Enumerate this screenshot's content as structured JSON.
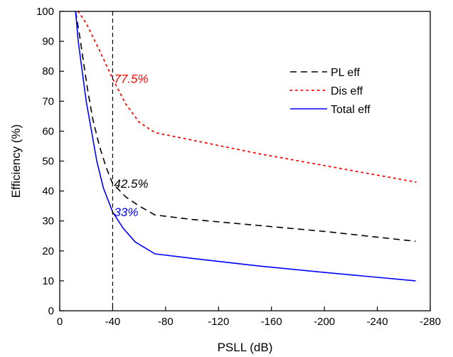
{
  "chart_data": {
    "type": "line",
    "xlabel": "PSLL (dB)",
    "ylabel": "Efficiency (%)",
    "xlim": [
      0,
      -280
    ],
    "ylim": [
      0,
      100
    ],
    "xticks": [
      0,
      -40,
      -80,
      -120,
      -160,
      -200,
      -240,
      -280
    ],
    "yticks": [
      0,
      10,
      20,
      30,
      40,
      50,
      60,
      70,
      80,
      90,
      100
    ],
    "grid": false,
    "legend_position": "top-right",
    "reference_line": {
      "x": -40,
      "style": "dashed"
    },
    "series": [
      {
        "name": "PL eff",
        "color": "#000000",
        "dash": "dashed",
        "points": [
          [
            -12,
            100
          ],
          [
            -15,
            92
          ],
          [
            -18,
            83
          ],
          [
            -21,
            74
          ],
          [
            -25,
            64
          ],
          [
            -30,
            55
          ],
          [
            -35,
            48
          ],
          [
            -40,
            42.5
          ],
          [
            -50,
            38
          ],
          [
            -60,
            35
          ],
          [
            -72,
            32
          ],
          [
            -100,
            30.5
          ],
          [
            -150,
            28.5
          ],
          [
            -200,
            26.5
          ],
          [
            -269,
            23.2
          ]
        ]
      },
      {
        "name": "Dis eff",
        "color": "#ff0000",
        "dash": "dotted",
        "points": [
          [
            -14,
            100
          ],
          [
            -20,
            96
          ],
          [
            -30,
            87
          ],
          [
            -40,
            77.5
          ],
          [
            -50,
            69
          ],
          [
            -60,
            63
          ],
          [
            -72,
            59.5
          ],
          [
            -100,
            57
          ],
          [
            -150,
            52.5
          ],
          [
            -200,
            48.5
          ],
          [
            -269,
            43
          ]
        ]
      },
      {
        "name": "Total eff",
        "color": "#0000ff",
        "dash": "solid",
        "points": [
          [
            -12,
            100
          ],
          [
            -14,
            90
          ],
          [
            -17,
            80
          ],
          [
            -20,
            70
          ],
          [
            -24,
            60
          ],
          [
            -28,
            50
          ],
          [
            -33,
            41
          ],
          [
            -40,
            33
          ],
          [
            -48,
            27.5
          ],
          [
            -57,
            23
          ],
          [
            -72,
            19
          ],
          [
            -100,
            17.5
          ],
          [
            -150,
            15
          ],
          [
            -200,
            12.8
          ],
          [
            -269,
            10
          ]
        ]
      }
    ],
    "annotations": [
      {
        "text": "77.5%",
        "x": -40,
        "y": 77.5,
        "color": "#ff0000"
      },
      {
        "text": "42.5%",
        "x": -40,
        "y": 42.5,
        "color": "#000000"
      },
      {
        "text": "33%",
        "x": -40,
        "y": 33,
        "color": "#0000ff"
      }
    ]
  }
}
